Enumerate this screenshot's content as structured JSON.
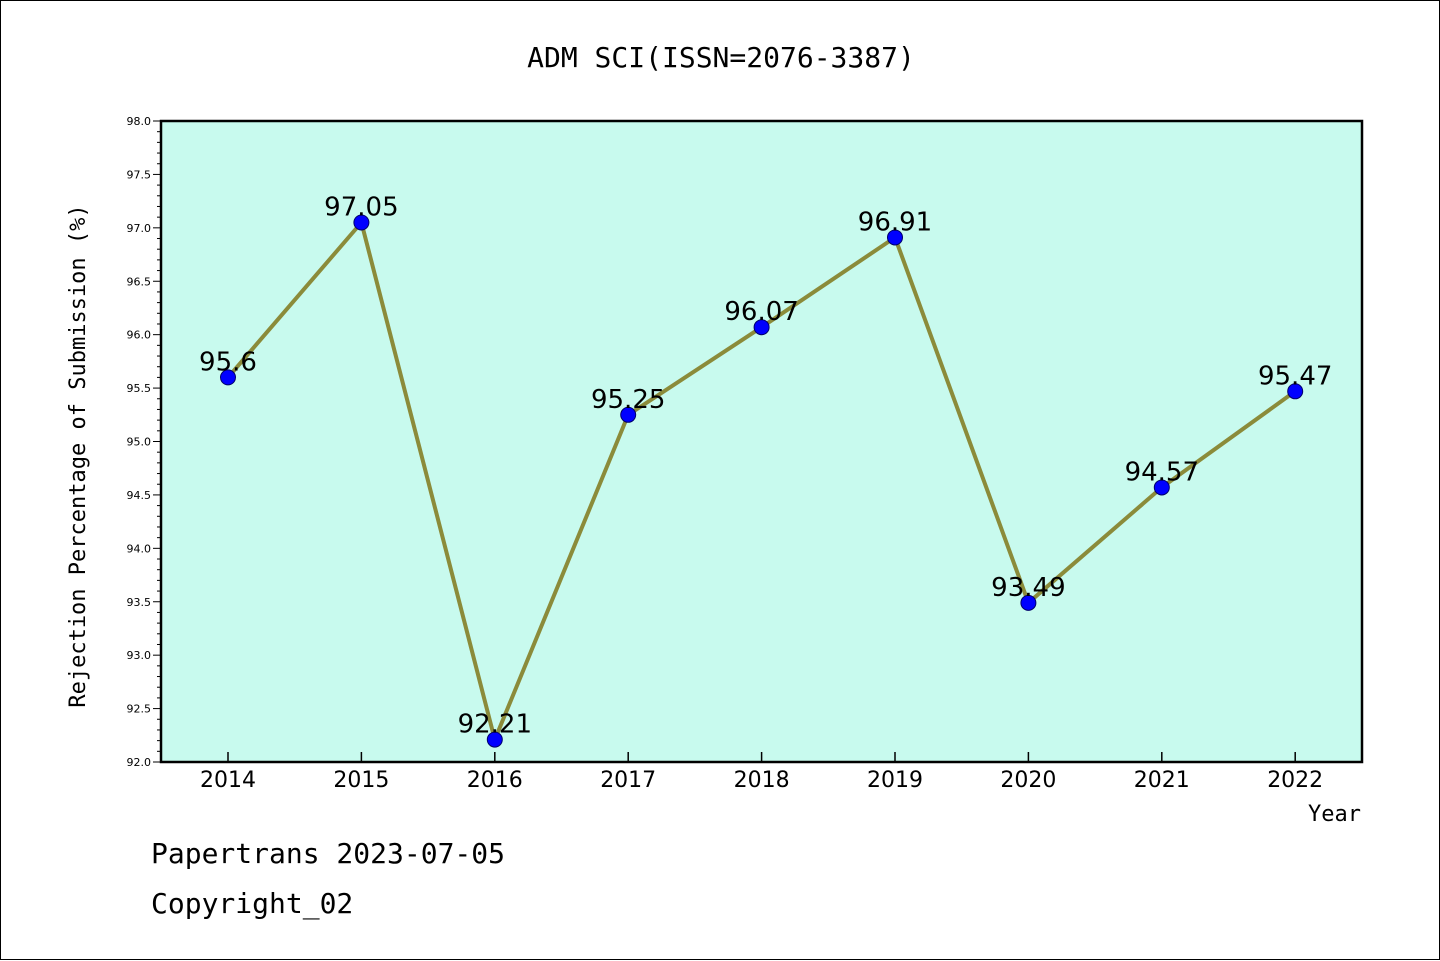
{
  "chart_data": {
    "type": "line",
    "title": "ADM SCI(ISSN=2076-3387)",
    "xlabel": "Year",
    "ylabel": "Rejection Percentage of Submission (%)",
    "categories": [
      "2014",
      "2015",
      "2016",
      "2017",
      "2018",
      "2019",
      "2020",
      "2021",
      "2022"
    ],
    "values": [
      95.6,
      97.05,
      92.21,
      95.25,
      96.07,
      96.91,
      93.49,
      94.57,
      95.47
    ],
    "data_labels": [
      "95.6",
      "97.05",
      "92.21",
      "95.25",
      "96.07",
      "96.91",
      "93.49",
      "94.57",
      "95.47"
    ],
    "ylim": [
      92.0,
      98.0
    ],
    "yticks": [
      "92.0",
      "92.5",
      "93.0",
      "93.5",
      "94.0",
      "94.5",
      "95.0",
      "95.5",
      "96.0",
      "96.5",
      "97.0",
      "97.5",
      "98.0"
    ],
    "grid": false,
    "line_color": "#8b8b3a",
    "marker_color": "#0000ff",
    "plot_background": "#c8faee"
  },
  "footer": {
    "line1": "Papertrans 2023-07-05",
    "line2": "Copyright_02"
  }
}
